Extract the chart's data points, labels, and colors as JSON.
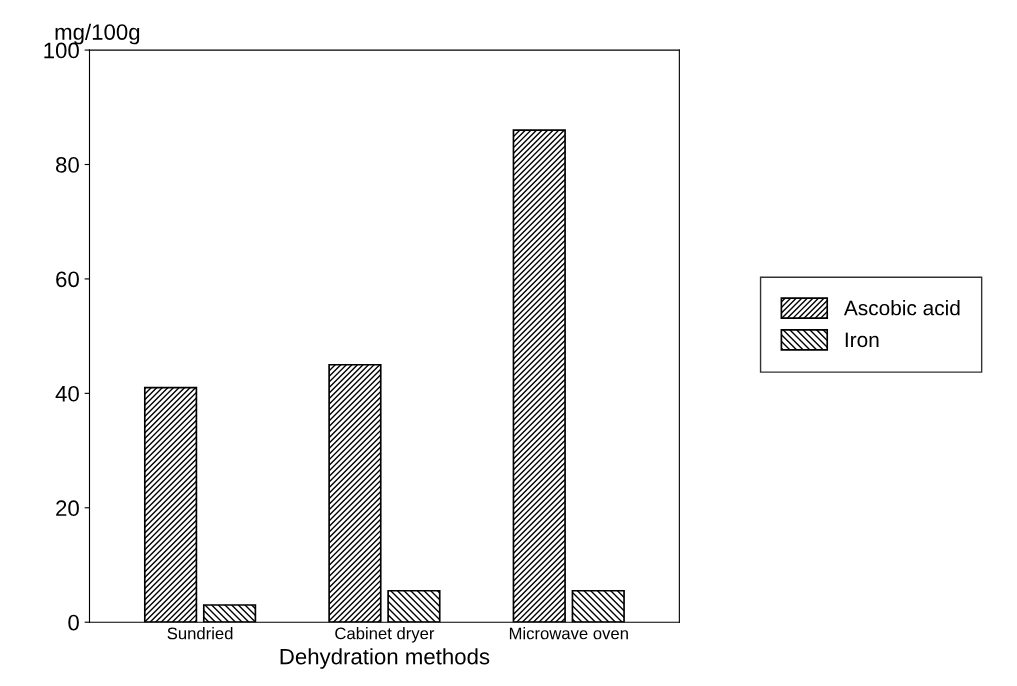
{
  "chart_data": {
    "type": "bar",
    "ylabel": "mg/100g",
    "xlabel": "Dehydration methods",
    "categories": [
      "Sundried",
      "Cabinet dryer",
      "Microwave oven"
    ],
    "series": [
      {
        "name": "Ascobic acid",
        "color": "#000000",
        "values": [
          41,
          45,
          86
        ]
      },
      {
        "name": "Iron",
        "color": "#000000",
        "values": [
          3,
          5.5,
          5.5
        ]
      }
    ],
    "ylim": [
      0,
      100
    ],
    "yticks": [
      0,
      20,
      40,
      60,
      80,
      100
    ],
    "grid": false,
    "legend": "right"
  }
}
